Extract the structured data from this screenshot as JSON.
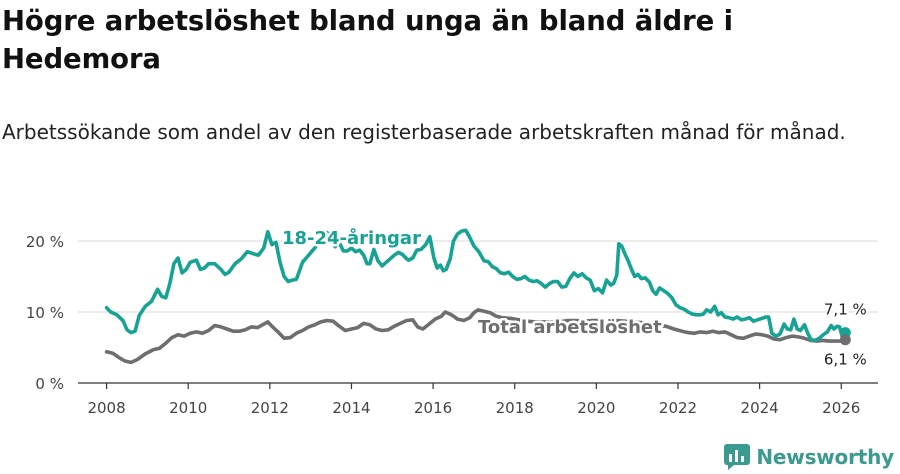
{
  "title": "Högre arbetslöshet bland unga än bland äldre i Hedemora",
  "subtitle": "Arbetssökande som andel av den registerbaserade arbetskraften månad för månad.",
  "brand": {
    "name": "Newsworthy",
    "icon": "newsworthy-logo-icon",
    "color": "#3a9a8f"
  },
  "chart_data": {
    "type": "line",
    "title": "Högre arbetslöshet bland unga än bland äldre i Hedemora",
    "subtitle": "Arbetssökande som andel av den registerbaserade arbetskraften månad för månad.",
    "xlabel": "",
    "ylabel": "",
    "xlim": [
      2007.3,
      2026.9
    ],
    "ylim": [
      0,
      20
    ],
    "x_ticks": [
      2008,
      2010,
      2012,
      2014,
      2016,
      2018,
      2020,
      2022,
      2024,
      2026
    ],
    "x_tick_labels": [
      "2008",
      "2010",
      "2012",
      "2014",
      "2016",
      "2018",
      "2020",
      "2022",
      "2024",
      "2026"
    ],
    "y_ticks": [
      0,
      10,
      20
    ],
    "y_tick_labels": [
      "0 %",
      "10 %",
      "20 %"
    ],
    "grid": "horizontal",
    "legend": "inline labels",
    "series": [
      {
        "name": "18-24-åringar",
        "color": "#16a394",
        "end_label": "7,1 %",
        "end_value": 7.1,
        "points": [
          [
            2008.0,
            10.6
          ],
          [
            2008.1,
            10.0
          ],
          [
            2008.25,
            9.6
          ],
          [
            2008.4,
            8.8
          ],
          [
            2008.5,
            7.5
          ],
          [
            2008.6,
            7.1
          ],
          [
            2008.7,
            7.3
          ],
          [
            2008.8,
            9.5
          ],
          [
            2008.95,
            10.8
          ],
          [
            2009.1,
            11.5
          ],
          [
            2009.25,
            13.2
          ],
          [
            2009.35,
            12.2
          ],
          [
            2009.45,
            12.0
          ],
          [
            2009.55,
            14.0
          ],
          [
            2009.65,
            16.8
          ],
          [
            2009.75,
            17.6
          ],
          [
            2009.85,
            15.5
          ],
          [
            2009.95,
            16.0
          ],
          [
            2010.05,
            17.0
          ],
          [
            2010.2,
            17.3
          ],
          [
            2010.3,
            16.0
          ],
          [
            2010.4,
            16.2
          ],
          [
            2010.5,
            16.8
          ],
          [
            2010.65,
            16.8
          ],
          [
            2010.8,
            16.0
          ],
          [
            2010.9,
            15.3
          ],
          [
            2011.0,
            15.6
          ],
          [
            2011.15,
            16.8
          ],
          [
            2011.3,
            17.5
          ],
          [
            2011.45,
            18.5
          ],
          [
            2011.6,
            18.2
          ],
          [
            2011.72,
            18.0
          ],
          [
            2011.85,
            19.0
          ],
          [
            2011.95,
            21.3
          ],
          [
            2012.05,
            19.5
          ],
          [
            2012.15,
            19.8
          ],
          [
            2012.25,
            17.0
          ],
          [
            2012.35,
            15.0
          ],
          [
            2012.45,
            14.3
          ],
          [
            2012.55,
            14.5
          ],
          [
            2012.65,
            14.6
          ],
          [
            2012.8,
            17.0
          ],
          [
            2012.95,
            18.0
          ],
          [
            2013.1,
            19.0
          ],
          [
            2013.25,
            20.3
          ],
          [
            2013.4,
            21.2
          ],
          [
            2013.5,
            20.2
          ],
          [
            2013.6,
            19.2
          ],
          [
            2013.7,
            19.8
          ],
          [
            2013.8,
            18.6
          ],
          [
            2013.9,
            18.6
          ],
          [
            2014.0,
            19.0
          ],
          [
            2014.1,
            18.5
          ],
          [
            2014.2,
            18.7
          ],
          [
            2014.3,
            18.0
          ],
          [
            2014.38,
            16.8
          ],
          [
            2014.45,
            16.8
          ],
          [
            2014.55,
            18.8
          ],
          [
            2014.65,
            17.2
          ],
          [
            2014.75,
            16.5
          ],
          [
            2014.85,
            17.0
          ],
          [
            2014.95,
            17.5
          ],
          [
            2015.05,
            18.0
          ],
          [
            2015.15,
            18.4
          ],
          [
            2015.25,
            18.1
          ],
          [
            2015.35,
            17.5
          ],
          [
            2015.4,
            17.3
          ],
          [
            2015.5,
            17.6
          ],
          [
            2015.6,
            18.7
          ],
          [
            2015.7,
            18.8
          ],
          [
            2015.82,
            19.5
          ],
          [
            2015.92,
            20.6
          ],
          [
            2016.02,
            17.6
          ],
          [
            2016.1,
            16.2
          ],
          [
            2016.18,
            16.6
          ],
          [
            2016.25,
            15.8
          ],
          [
            2016.32,
            16.0
          ],
          [
            2016.42,
            17.5
          ],
          [
            2016.5,
            20.0
          ],
          [
            2016.6,
            21.0
          ],
          [
            2016.7,
            21.4
          ],
          [
            2016.8,
            21.5
          ],
          [
            2016.9,
            20.5
          ],
          [
            2017.0,
            19.3
          ],
          [
            2017.12,
            18.5
          ],
          [
            2017.25,
            17.2
          ],
          [
            2017.35,
            17.1
          ],
          [
            2017.45,
            16.4
          ],
          [
            2017.55,
            16.1
          ],
          [
            2017.65,
            15.5
          ],
          [
            2017.75,
            15.4
          ],
          [
            2017.85,
            15.6
          ],
          [
            2017.95,
            15.0
          ],
          [
            2018.05,
            14.6
          ],
          [
            2018.15,
            14.7
          ],
          [
            2018.25,
            15.0
          ],
          [
            2018.35,
            14.5
          ],
          [
            2018.45,
            14.3
          ],
          [
            2018.55,
            14.4
          ],
          [
            2018.65,
            14.0
          ],
          [
            2018.75,
            13.5
          ],
          [
            2018.85,
            14.0
          ],
          [
            2018.95,
            14.3
          ],
          [
            2019.05,
            14.3
          ],
          [
            2019.15,
            13.5
          ],
          [
            2019.25,
            13.6
          ],
          [
            2019.35,
            14.7
          ],
          [
            2019.45,
            15.5
          ],
          [
            2019.55,
            15.0
          ],
          [
            2019.65,
            15.4
          ],
          [
            2019.75,
            14.8
          ],
          [
            2019.85,
            14.5
          ],
          [
            2019.95,
            13.0
          ],
          [
            2020.05,
            13.3
          ],
          [
            2020.15,
            12.7
          ],
          [
            2020.25,
            14.5
          ],
          [
            2020.35,
            13.8
          ],
          [
            2020.42,
            14.0
          ],
          [
            2020.5,
            15.2
          ],
          [
            2020.55,
            19.6
          ],
          [
            2020.62,
            19.3
          ],
          [
            2020.7,
            18.2
          ],
          [
            2020.78,
            17.2
          ],
          [
            2020.86,
            16.0
          ],
          [
            2020.94,
            15.0
          ],
          [
            2021.02,
            15.3
          ],
          [
            2021.1,
            14.7
          ],
          [
            2021.2,
            14.8
          ],
          [
            2021.3,
            14.2
          ],
          [
            2021.38,
            13.0
          ],
          [
            2021.46,
            12.5
          ],
          [
            2021.55,
            13.4
          ],
          [
            2021.65,
            13.0
          ],
          [
            2021.75,
            12.6
          ],
          [
            2021.85,
            12.0
          ],
          [
            2021.95,
            11.0
          ],
          [
            2022.05,
            10.6
          ],
          [
            2022.15,
            10.4
          ],
          [
            2022.25,
            10.0
          ],
          [
            2022.35,
            9.7
          ],
          [
            2022.45,
            9.6
          ],
          [
            2022.55,
            9.6
          ],
          [
            2022.62,
            9.7
          ],
          [
            2022.7,
            10.3
          ],
          [
            2022.8,
            10.0
          ],
          [
            2022.9,
            10.8
          ],
          [
            2022.98,
            9.6
          ],
          [
            2023.06,
            9.9
          ],
          [
            2023.15,
            9.3
          ],
          [
            2023.25,
            9.2
          ],
          [
            2023.35,
            9.0
          ],
          [
            2023.45,
            9.3
          ],
          [
            2023.55,
            8.9
          ],
          [
            2023.65,
            9.0
          ],
          [
            2023.75,
            9.2
          ],
          [
            2023.85,
            8.7
          ],
          [
            2023.95,
            8.9
          ],
          [
            2024.05,
            9.1
          ],
          [
            2024.15,
            9.3
          ],
          [
            2024.22,
            9.3
          ],
          [
            2024.3,
            7.0
          ],
          [
            2024.4,
            6.6
          ],
          [
            2024.5,
            6.9
          ],
          [
            2024.6,
            8.3
          ],
          [
            2024.68,
            7.6
          ],
          [
            2024.76,
            7.5
          ],
          [
            2024.84,
            9.0
          ],
          [
            2024.92,
            7.6
          ],
          [
            2025.0,
            7.4
          ],
          [
            2025.1,
            8.2
          ],
          [
            2025.18,
            7.0
          ],
          [
            2025.26,
            6.1
          ],
          [
            2025.36,
            6.0
          ],
          [
            2025.46,
            6.3
          ],
          [
            2025.56,
            6.8
          ],
          [
            2025.66,
            7.2
          ],
          [
            2025.75,
            8.1
          ],
          [
            2025.82,
            7.6
          ],
          [
            2025.9,
            8.0
          ],
          [
            2025.96,
            7.9
          ],
          [
            2026.02,
            6.6
          ],
          [
            2026.1,
            7.1
          ]
        ]
      },
      {
        "name": "Total arbetslöshet",
        "color": "#6e6e70",
        "end_label": "6,1 %",
        "end_value": 6.1,
        "points": [
          [
            2008.0,
            4.4
          ],
          [
            2008.15,
            4.2
          ],
          [
            2008.3,
            3.6
          ],
          [
            2008.45,
            3.1
          ],
          [
            2008.6,
            2.9
          ],
          [
            2008.75,
            3.3
          ],
          [
            2008.95,
            4.1
          ],
          [
            2009.15,
            4.7
          ],
          [
            2009.3,
            4.9
          ],
          [
            2009.45,
            5.6
          ],
          [
            2009.6,
            6.4
          ],
          [
            2009.75,
            6.8
          ],
          [
            2009.9,
            6.6
          ],
          [
            2010.05,
            7.0
          ],
          [
            2010.2,
            7.2
          ],
          [
            2010.35,
            7.0
          ],
          [
            2010.5,
            7.4
          ],
          [
            2010.65,
            8.1
          ],
          [
            2010.8,
            7.9
          ],
          [
            2010.95,
            7.6
          ],
          [
            2011.1,
            7.3
          ],
          [
            2011.25,
            7.3
          ],
          [
            2011.4,
            7.5
          ],
          [
            2011.55,
            7.9
          ],
          [
            2011.7,
            7.8
          ],
          [
            2011.82,
            8.2
          ],
          [
            2011.95,
            8.6
          ],
          [
            2012.05,
            8.0
          ],
          [
            2012.2,
            7.2
          ],
          [
            2012.35,
            6.3
          ],
          [
            2012.5,
            6.4
          ],
          [
            2012.65,
            7.0
          ],
          [
            2012.8,
            7.4
          ],
          [
            2012.95,
            7.9
          ],
          [
            2013.1,
            8.2
          ],
          [
            2013.25,
            8.6
          ],
          [
            2013.4,
            8.8
          ],
          [
            2013.55,
            8.7
          ],
          [
            2013.7,
            8.0
          ],
          [
            2013.85,
            7.4
          ],
          [
            2014.0,
            7.6
          ],
          [
            2014.15,
            7.8
          ],
          [
            2014.3,
            8.4
          ],
          [
            2014.45,
            8.2
          ],
          [
            2014.6,
            7.6
          ],
          [
            2014.75,
            7.4
          ],
          [
            2014.9,
            7.5
          ],
          [
            2015.05,
            8.0
          ],
          [
            2015.2,
            8.4
          ],
          [
            2015.35,
            8.8
          ],
          [
            2015.5,
            8.9
          ],
          [
            2015.62,
            7.9
          ],
          [
            2015.75,
            7.6
          ],
          [
            2015.9,
            8.3
          ],
          [
            2016.05,
            9.0
          ],
          [
            2016.2,
            9.4
          ],
          [
            2016.3,
            10.0
          ],
          [
            2016.45,
            9.6
          ],
          [
            2016.6,
            9.0
          ],
          [
            2016.75,
            8.8
          ],
          [
            2016.9,
            9.2
          ],
          [
            2017.0,
            9.9
          ],
          [
            2017.1,
            10.3
          ],
          [
            2017.25,
            10.1
          ],
          [
            2017.4,
            9.9
          ],
          [
            2017.55,
            9.4
          ],
          [
            2017.7,
            9.2
          ],
          [
            2017.9,
            9.1
          ],
          [
            2018.1,
            8.9
          ],
          [
            2018.3,
            8.7
          ],
          [
            2018.5,
            8.6
          ],
          [
            2018.7,
            8.6
          ],
          [
            2018.9,
            8.6
          ],
          [
            2019.1,
            8.6
          ],
          [
            2019.3,
            8.8
          ],
          [
            2019.5,
            8.8
          ],
          [
            2019.7,
            8.7
          ],
          [
            2019.9,
            8.8
          ],
          [
            2020.1,
            8.8
          ],
          [
            2020.3,
            8.9
          ],
          [
            2020.5,
            8.8
          ],
          [
            2020.7,
            8.7
          ],
          [
            2020.9,
            8.6
          ],
          [
            2021.1,
            8.5
          ],
          [
            2021.3,
            8.3
          ],
          [
            2021.5,
            8.1
          ],
          [
            2021.7,
            8.0
          ],
          [
            2021.9,
            7.6
          ],
          [
            2022.1,
            7.3
          ],
          [
            2022.25,
            7.1
          ],
          [
            2022.4,
            7.0
          ],
          [
            2022.55,
            7.2
          ],
          [
            2022.7,
            7.1
          ],
          [
            2022.85,
            7.3
          ],
          [
            2023.0,
            7.1
          ],
          [
            2023.15,
            7.2
          ],
          [
            2023.3,
            6.8
          ],
          [
            2023.45,
            6.4
          ],
          [
            2023.6,
            6.3
          ],
          [
            2023.75,
            6.6
          ],
          [
            2023.9,
            6.9
          ],
          [
            2024.05,
            6.8
          ],
          [
            2024.2,
            6.6
          ],
          [
            2024.35,
            6.2
          ],
          [
            2024.5,
            6.1
          ],
          [
            2024.65,
            6.4
          ],
          [
            2024.8,
            6.6
          ],
          [
            2024.95,
            6.5
          ],
          [
            2025.1,
            6.3
          ],
          [
            2025.25,
            6.0
          ],
          [
            2025.4,
            5.9
          ],
          [
            2025.55,
            6.0
          ],
          [
            2025.7,
            5.9
          ],
          [
            2025.85,
            5.9
          ],
          [
            2026.0,
            5.9
          ],
          [
            2026.1,
            6.1
          ]
        ]
      }
    ]
  }
}
